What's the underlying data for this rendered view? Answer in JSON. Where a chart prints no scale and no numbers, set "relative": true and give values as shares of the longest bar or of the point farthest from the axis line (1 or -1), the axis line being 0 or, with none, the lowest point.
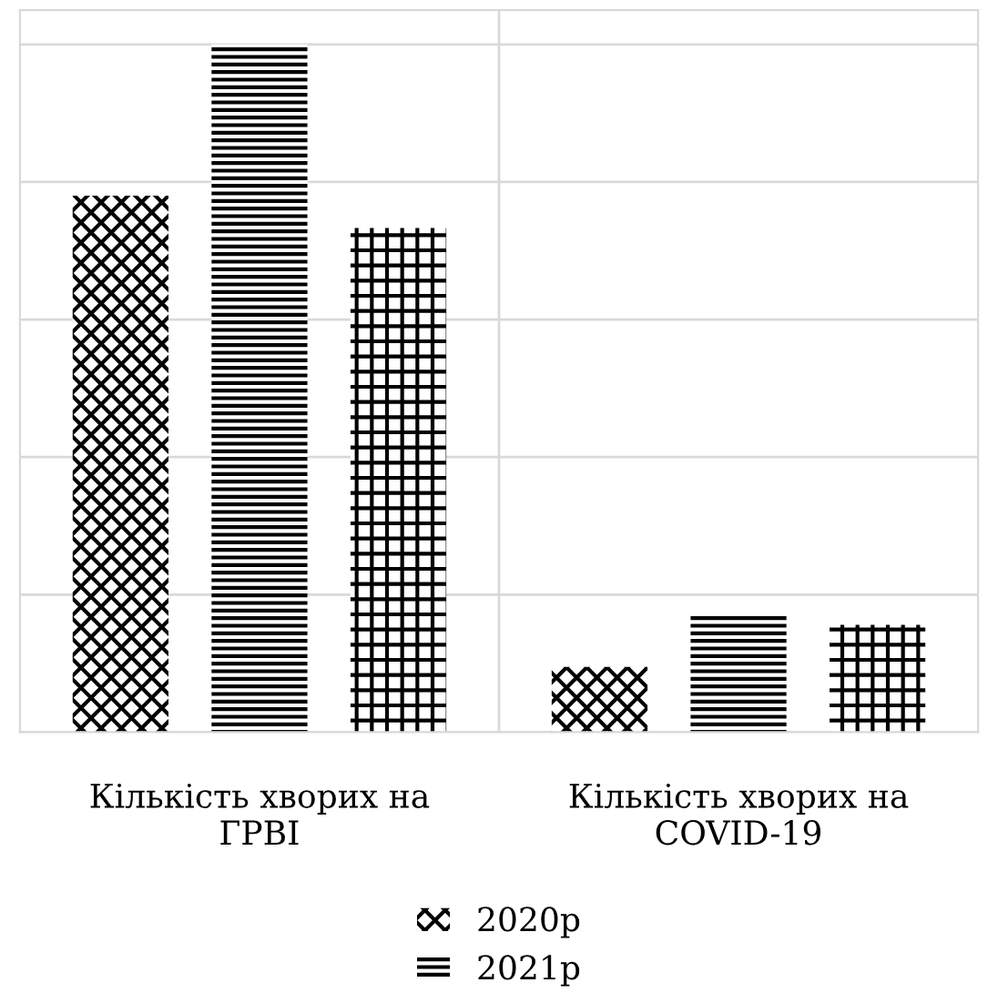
{
  "chart_data": {
    "type": "bar",
    "relative": true,
    "categories": [
      "Кількість хворих на ГРВІ",
      "Кількість хворих на COVID-19"
    ],
    "series": [
      {
        "name": "2020р",
        "color": "#000000",
        "values": [
          0.78,
          0.095
        ]
      },
      {
        "name": "2021р",
        "color": "#000000",
        "values": [
          1,
          0.173
        ]
      },
      {
        "color": "#000000",
        "values": [
          0.733,
          0.156
        ]
      }
    ],
    "grid": "y",
    "legend": "bottom"
  }
}
